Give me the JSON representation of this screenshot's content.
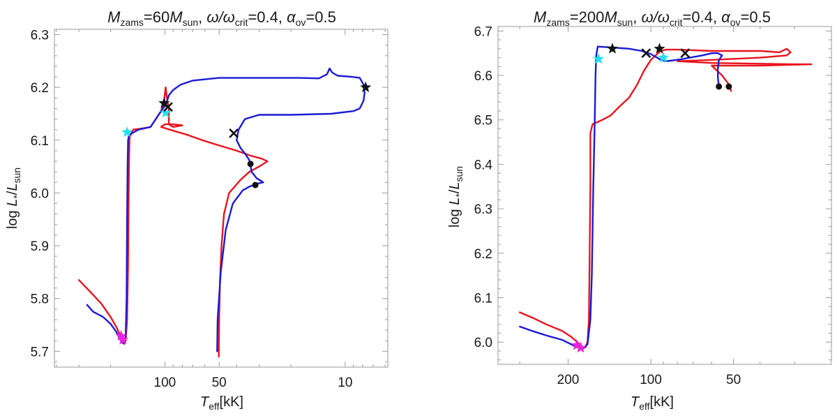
{
  "colors": {
    "red_track": "#e8141c",
    "blue_track": "#1a1ad6",
    "cyan_star": "#22e0f0",
    "magenta_star": "#ee22dd",
    "black_marker": "#111111"
  },
  "chart_data": [
    {
      "type": "line",
      "title": {
        "M": "M",
        "zams_sub": "zams",
        "eq60": "=60",
        "M2": "M",
        "sun_sub": "sun",
        "comma1": ", ",
        "omega": "ω/ω",
        "crit_sub": "crit",
        "eq_omega": "=0.4, ",
        "alpha": "α",
        "ov_sub": "ov",
        "eq_alpha": "=0.5"
      },
      "xlabel": {
        "T": "T",
        "eff_sub": "eff",
        "unit": "[kK]"
      },
      "ylabel": {
        "log": "log ",
        "L": "L",
        "star_sub": "*",
        "slash": "/",
        "L2": "L",
        "sun_sub": "sun"
      },
      "x_scale": "log, reversed",
      "xlim": [
        410,
        5.8
      ],
      "ylim": [
        5.67,
        6.31
      ],
      "xticks": [
        100,
        50,
        10
      ],
      "xtick_labels": [
        "100",
        "50",
        "10"
      ],
      "yticks": [
        5.7,
        5.8,
        5.9,
        6.0,
        6.1,
        6.2,
        6.3
      ],
      "ytick_labels": [
        "5.7",
        "5.8",
        "5.9",
        "6.0",
        "6.1",
        "6.2",
        "6.3"
      ],
      "series": [
        {
          "name": "red",
          "color": "#e8141c",
          "points": [
            [
              300,
              5.835
            ],
            [
              255,
              5.81
            ],
            [
              225,
              5.79
            ],
            [
              200,
              5.765
            ],
            [
              185,
              5.745
            ],
            [
              176,
              5.728
            ],
            [
              172,
              5.718
            ],
            [
              168,
              5.714
            ],
            [
              165,
              5.72
            ],
            [
              162,
              5.76
            ],
            [
              160,
              5.86
            ],
            [
              159,
              5.97
            ],
            [
              158,
              6.06
            ],
            [
              157,
              6.105
            ],
            [
              150,
              6.12
            ],
            [
              135,
              6.122
            ],
            [
              120,
              6.125
            ],
            [
              105,
              6.155
            ],
            [
              101,
              6.175
            ],
            [
              99,
              6.2
            ],
            [
              97,
              6.175
            ],
            [
              95,
              6.16
            ],
            [
              95,
              6.13
            ],
            [
              90,
              6.125
            ],
            [
              80,
              6.128
            ],
            [
              90,
              6.13
            ],
            [
              100,
              6.13
            ],
            [
              105,
              6.125
            ],
            [
              90,
              6.118
            ],
            [
              75,
              6.11
            ],
            [
              62,
              6.1
            ],
            [
              50,
              6.09
            ],
            [
              40,
              6.08
            ],
            [
              33,
              6.07
            ],
            [
              29,
              6.065
            ],
            [
              27,
              6.06
            ],
            [
              30,
              6.05
            ],
            [
              34,
              6.04
            ],
            [
              38,
              6.025
            ],
            [
              44,
              6.0
            ],
            [
              47,
              5.96
            ],
            [
              48.5,
              5.9
            ],
            [
              49.5,
              5.83
            ],
            [
              50,
              5.76
            ],
            [
              50.2,
              5.69
            ]
          ]
        },
        {
          "name": "blue",
          "color": "#1a1ad6",
          "points": [
            [
              270,
              5.788
            ],
            [
              250,
              5.775
            ],
            [
              220,
              5.765
            ],
            [
              200,
              5.752
            ],
            [
              186,
              5.737
            ],
            [
              178,
              5.724
            ],
            [
              172,
              5.716
            ],
            [
              168,
              5.716
            ],
            [
              165,
              5.73
            ],
            [
              163,
              5.8
            ],
            [
              162,
              5.95
            ],
            [
              161,
              6.05
            ],
            [
              160,
              6.1
            ],
            [
              158,
              6.11
            ],
            [
              140,
              6.12
            ],
            [
              120,
              6.125
            ],
            [
              105,
              6.155
            ],
            [
              100,
              6.165
            ],
            [
              97,
              6.175
            ],
            [
              95,
              6.185
            ],
            [
              90,
              6.195
            ],
            [
              82,
              6.205
            ],
            [
              70,
              6.213
            ],
            [
              50,
              6.218
            ],
            [
              30,
              6.218
            ],
            [
              18,
              6.218
            ],
            [
              14,
              6.217
            ],
            [
              12.6,
              6.225
            ],
            [
              12.2,
              6.236
            ],
            [
              11.8,
              6.228
            ],
            [
              11,
              6.222
            ],
            [
              9.2,
              6.22
            ],
            [
              8.3,
              6.218
            ],
            [
              7.9,
              6.205
            ],
            [
              7.8,
              6.19
            ],
            [
              7.9,
              6.175
            ],
            [
              8.3,
              6.16
            ],
            [
              9,
              6.155
            ],
            [
              12,
              6.15
            ],
            [
              20,
              6.148
            ],
            [
              30,
              6.148
            ],
            [
              36,
              6.14
            ],
            [
              39,
              6.12
            ],
            [
              40,
              6.1
            ],
            [
              38,
              6.085
            ],
            [
              36,
              6.075
            ],
            [
              34,
              6.062
            ],
            [
              33,
              6.04
            ],
            [
              31,
              6.028
            ],
            [
              29,
              6.022
            ],
            [
              28.5,
              6.02
            ],
            [
              30.5,
              6.018
            ],
            [
              34,
              6.012
            ],
            [
              37,
              6.005
            ],
            [
              42,
              5.98
            ],
            [
              46,
              5.93
            ],
            [
              49,
              5.85
            ],
            [
              51,
              5.76
            ],
            [
              51.3,
              5.7
            ]
          ]
        }
      ],
      "markers": [
        {
          "shape": "star",
          "color": "#22e0f0",
          "points": [
            [
              162,
              6.115
            ],
            [
              99,
              6.152
            ]
          ]
        },
        {
          "shape": "star",
          "color": "#ee22dd",
          "points": [
            [
              175,
              5.729
            ],
            [
              171,
              5.722
            ]
          ]
        },
        {
          "shape": "star",
          "color": "#111111",
          "points": [
            [
              101,
              6.17
            ],
            [
              7.7,
              6.2
            ]
          ]
        },
        {
          "shape": "cross",
          "color": "#111111",
          "points": [
            [
              96,
              6.163
            ],
            [
              41.5,
              6.113
            ]
          ]
        },
        {
          "shape": "dot",
          "color": "#111111",
          "points": [
            [
              33.5,
              6.055
            ],
            [
              31.5,
              6.015
            ]
          ]
        }
      ]
    },
    {
      "type": "line",
      "title": {
        "M": "M",
        "zams_sub": "zams",
        "eq60": "=200",
        "M2": "M",
        "sun_sub": "sun",
        "comma1": ", ",
        "omega": "ω/ω",
        "crit_sub": "crit",
        "eq_omega": "=0.4, ",
        "alpha": "α",
        "ov_sub": "ov",
        "eq_alpha": "=0.5"
      },
      "xlabel": {
        "T": "T",
        "eff_sub": "eff",
        "unit": "[kK]"
      },
      "ylabel": {
        "log": "log ",
        "L": "L",
        "star_sub": "*",
        "slash": "/",
        "L2": "L",
        "sun_sub": "sun"
      },
      "x_scale": "log, reversed",
      "xlim": [
        360,
        22
      ],
      "ylim": [
        5.95,
        6.71
      ],
      "xticks": [
        200,
        100,
        50
      ],
      "xtick_labels": [
        "200",
        "100",
        "50"
      ],
      "yticks": [
        6.0,
        6.1,
        6.2,
        6.3,
        6.4,
        6.5,
        6.6,
        6.7
      ],
      "ytick_labels": [
        "6.0",
        "6.1",
        "6.2",
        "6.3",
        "6.4",
        "6.5",
        "6.6",
        "6.7"
      ],
      "series": [
        {
          "name": "red",
          "color": "#e8141c",
          "points": [
            [
              300,
              6.067
            ],
            [
              270,
              6.055
            ],
            [
              240,
              6.04
            ],
            [
              210,
              6.025
            ],
            [
              195,
              6.012
            ],
            [
              185,
              6.0
            ],
            [
              178,
              5.99
            ],
            [
              173,
              5.988
            ],
            [
              170,
              6.0
            ],
            [
              168,
              6.05
            ],
            [
              167,
              6.2
            ],
            [
              166,
              6.35
            ],
            [
              166,
              6.47
            ],
            [
              163,
              6.49
            ],
            [
              150,
              6.5
            ],
            [
              140,
              6.51
            ],
            [
              130,
              6.53
            ],
            [
              120,
              6.55
            ],
            [
              112,
              6.58
            ],
            [
              106,
              6.61
            ],
            [
              100,
              6.635
            ],
            [
              96,
              6.645
            ],
            [
              92,
              6.655
            ],
            [
              88,
              6.658
            ],
            [
              80,
              6.658
            ],
            [
              60,
              6.655
            ],
            [
              40,
              6.655
            ],
            [
              34,
              6.652
            ],
            [
              32,
              6.66
            ],
            [
              31,
              6.652
            ],
            [
              32,
              6.645
            ],
            [
              40,
              6.64
            ],
            [
              60,
              6.635
            ],
            [
              80,
              6.632
            ],
            [
              60,
              6.628
            ],
            [
              30,
              6.625
            ],
            [
              26,
              6.625
            ],
            [
              40,
              6.622
            ],
            [
              60,
              6.622
            ],
            [
              55,
              6.6
            ],
            [
              52,
              6.58
            ],
            [
              51,
              6.565
            ]
          ]
        },
        {
          "name": "blue",
          "color": "#1a1ad6",
          "points": [
            [
              300,
              6.035
            ],
            [
              270,
              6.025
            ],
            [
              240,
              6.015
            ],
            [
              210,
              6.005
            ],
            [
              195,
              5.995
            ],
            [
              185,
              5.988
            ],
            [
              177,
              5.985
            ],
            [
              170,
              5.995
            ],
            [
              166,
              6.05
            ],
            [
              164,
              6.15
            ],
            [
              162,
              6.35
            ],
            [
              160,
              6.5
            ],
            [
              159,
              6.6
            ],
            [
              158,
              6.645
            ],
            [
              156,
              6.665
            ],
            [
              140,
              6.663
            ],
            [
              120,
              6.66
            ],
            [
              108,
              6.655
            ],
            [
              100,
              6.648
            ],
            [
              96,
              6.642
            ],
            [
              92,
              6.635
            ],
            [
              88,
              6.632
            ],
            [
              85,
              6.633
            ],
            [
              78,
              6.636
            ],
            [
              72,
              6.64
            ],
            [
              65,
              6.645
            ],
            [
              60,
              6.65
            ],
            [
              57,
              6.65
            ],
            [
              55,
              6.645
            ],
            [
              56.5,
              6.635
            ],
            [
              57,
              6.615
            ],
            [
              57,
              6.595
            ],
            [
              56.5,
              6.575
            ]
          ]
        }
      ],
      "markers": [
        {
          "shape": "star",
          "color": "#22e0f0",
          "points": [
            [
              155,
              6.637
            ],
            [
              90,
              6.64
            ]
          ]
        },
        {
          "shape": "star",
          "color": "#ee22dd",
          "points": [
            [
              186,
              5.993
            ],
            [
              180,
              5.987
            ]
          ]
        },
        {
          "shape": "star",
          "color": "#111111",
          "points": [
            [
              138,
              6.66
            ],
            [
              93,
              6.66
            ]
          ]
        },
        {
          "shape": "cross",
          "color": "#111111",
          "points": [
            [
              104,
              6.65
            ],
            [
              75,
              6.65
            ]
          ]
        },
        {
          "shape": "dot",
          "color": "#111111",
          "points": [
            [
              56.5,
              6.575
            ],
            [
              52,
              6.575
            ]
          ]
        }
      ]
    }
  ]
}
